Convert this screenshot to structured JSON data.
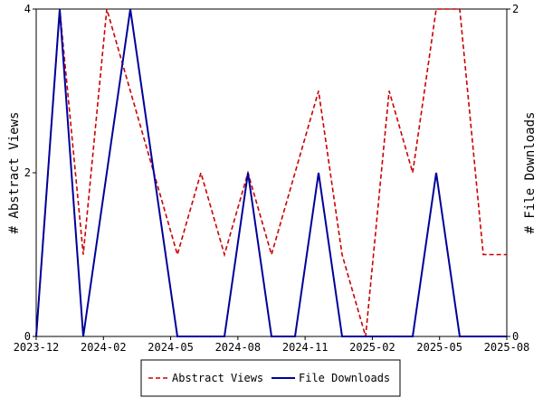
{
  "chart_data": {
    "type": "line",
    "title": "",
    "xlabel": "",
    "ylabel": "# Abstract Views",
    "y2label": "# File Downloads",
    "x_tick_labels": [
      "2023-12",
      "2024-02",
      "2024-05",
      "2024-08",
      "2024-11",
      "2025-02",
      "2025-05",
      "2025-08"
    ],
    "ylim": [
      0,
      4
    ],
    "y_ticks": [
      "0",
      "2",
      "4"
    ],
    "y2lim": [
      0,
      2
    ],
    "y2_ticks": [
      "0",
      "2"
    ],
    "x": [
      "2023-12",
      "2024-01",
      "2024-02",
      "2024-03",
      "2024-04",
      "2024-05",
      "2024-06",
      "2024-07",
      "2024-08",
      "2024-09",
      "2024-10",
      "2024-11",
      "2024-12",
      "2025-01",
      "2025-02",
      "2025-03",
      "2025-04",
      "2025-05",
      "2025-06",
      "2025-07",
      "2025-08"
    ],
    "series": [
      {
        "name": "Abstract Views",
        "axis": "left",
        "color": "#cc0000",
        "dash": "dashed",
        "values": [
          0,
          4,
          1,
          4,
          3,
          2,
          1,
          2,
          1,
          2,
          1,
          2,
          3,
          1,
          0,
          3,
          2,
          4,
          4,
          1,
          1
        ]
      },
      {
        "name": "File Downloads",
        "axis": "right",
        "color": "#000099",
        "dash": "solid",
        "values": [
          0,
          2,
          0,
          1,
          2,
          1,
          0,
          0,
          0,
          1,
          0,
          0,
          1,
          0,
          0,
          0,
          0,
          1,
          0,
          0,
          0
        ]
      }
    ],
    "grid": false,
    "legend_position": "bottom"
  }
}
